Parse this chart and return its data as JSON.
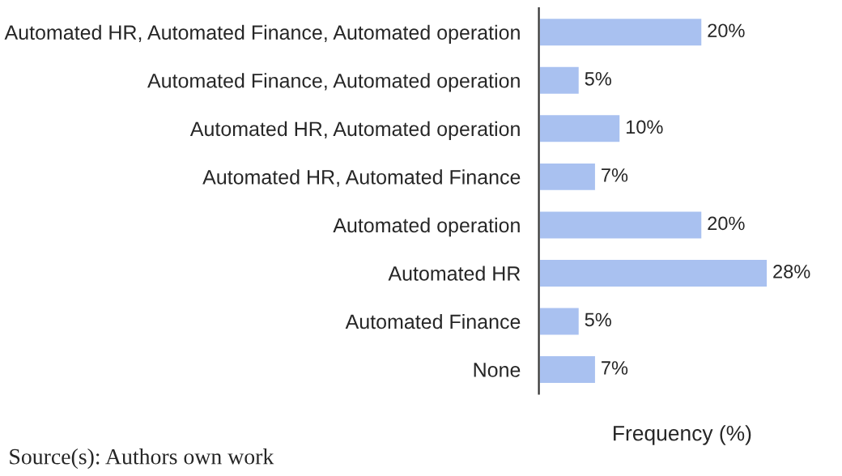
{
  "chart_data": {
    "type": "bar",
    "orientation": "horizontal",
    "xlabel": "Frequency (%)",
    "categories": [
      "Automated HR, Automated Finance, Automated operation",
      "Automated Finance, Automated operation",
      "Automated HR, Automated operation",
      "Automated HR, Automated Finance",
      "Automated operation",
      "Automated HR",
      "Automated Finance",
      "None"
    ],
    "values": [
      20,
      5,
      10,
      7,
      20,
      28,
      5,
      7
    ],
    "value_labels": [
      "20%",
      "5%",
      "10%",
      "7%",
      "20%",
      "28%",
      "5%",
      "7%"
    ],
    "color": "#a9c1f0",
    "grid": false,
    "legend": false,
    "annotations": [
      "Source(s): Authors own work"
    ]
  }
}
